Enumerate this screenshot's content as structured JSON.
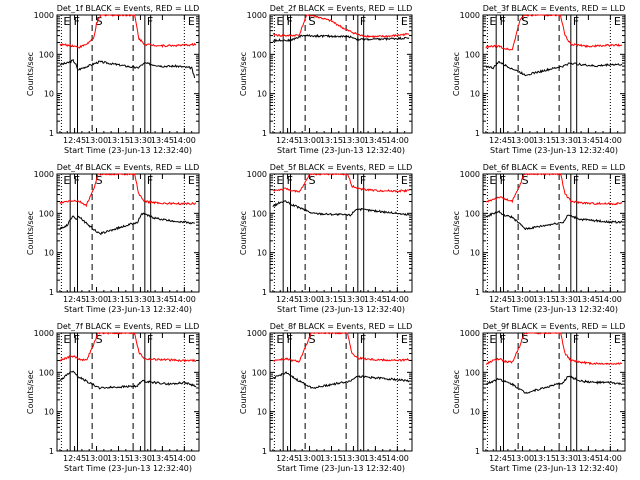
{
  "chart_data": [
    {
      "type": "line",
      "title": "Det_1f BLACK = Events, RED = LLD",
      "xlabel": "Start Time (23-Jun-13 12:32:40)",
      "ylabel": "Counts/sec",
      "x_tick_labels": [
        "12:45",
        "13:00",
        "13:15",
        "13:30",
        "13:45",
        "14:00"
      ],
      "y_tick_labels": [
        "1",
        "10",
        "100",
        "1000"
      ],
      "ylim": [
        1,
        1000
      ],
      "yscale": "log",
      "marker_labels": [
        "E",
        "F",
        "S",
        "F",
        "E"
      ],
      "series": [
        {
          "color": "#000000",
          "x": [
            "12:35",
            "12:40",
            "12:44",
            "12:46",
            "12:47",
            "13:02",
            "13:28",
            "13:33",
            "13:38",
            "13:45",
            "13:55",
            "14:05",
            "14:07"
          ],
          "values": [
            55,
            60,
            70,
            55,
            40,
            65,
            45,
            60,
            55,
            50,
            50,
            45,
            25
          ]
        },
        {
          "color": "#ff0000",
          "x": [
            "12:35",
            "12:40",
            "12:44",
            "12:48",
            "12:53",
            "12:58",
            "13:00",
            "13:03",
            "13:26",
            "13:29",
            "13:33",
            "13:45",
            "14:00",
            "14:08"
          ],
          "values": [
            180,
            170,
            165,
            150,
            180,
            250,
            600,
            1000,
            1000,
            250,
            180,
            165,
            170,
            180
          ]
        }
      ]
    },
    {
      "type": "line",
      "title": "Det_2f BLACK = Events, RED = LLD",
      "xlabel": "Start Time (23-Jun-13 12:32:40)",
      "ylabel": "Counts/sec",
      "x_tick_labels": [
        "12:45",
        "13:00",
        "13:15",
        "13:30",
        "13:45",
        "14:00"
      ],
      "y_tick_labels": [
        "1",
        "10",
        "100",
        "1000"
      ],
      "ylim": [
        1,
        1000
      ],
      "yscale": "log",
      "marker_labels": [
        "E",
        "F",
        "S",
        "F",
        "E"
      ],
      "series": [
        {
          "color": "#000000",
          "x": [
            "12:35",
            "12:40",
            "12:47",
            "12:55",
            "13:28",
            "13:33",
            "13:45",
            "13:55",
            "14:08"
          ],
          "values": [
            220,
            230,
            225,
            300,
            280,
            240,
            240,
            250,
            260
          ]
        },
        {
          "color": "#ff0000",
          "x": [
            "12:35",
            "12:40",
            "12:47",
            "12:53",
            "12:58",
            "13:03",
            "13:15",
            "13:25",
            "13:35",
            "13:45",
            "13:55",
            "14:08"
          ],
          "values": [
            320,
            300,
            300,
            310,
            1000,
            950,
            700,
            420,
            300,
            280,
            290,
            330
          ]
        }
      ]
    },
    {
      "type": "line",
      "title": "Det_3f BLACK = Events, RED = LLD",
      "xlabel": "Start Time (23-Jun-13 12:32:40)",
      "ylabel": "Counts/sec",
      "x_tick_labels": [
        "12:45",
        "13:00",
        "13:15",
        "13:30",
        "13:45",
        "14:00"
      ],
      "y_tick_labels": [
        "1",
        "10",
        "100",
        "1000"
      ],
      "ylim": [
        1,
        1000
      ],
      "yscale": "log",
      "marker_labels": [
        "E",
        "F",
        "S",
        "F",
        "E"
      ],
      "series": [
        {
          "color": "#000000",
          "x": [
            "12:35",
            "12:40",
            "12:44",
            "12:47",
            "13:02",
            "13:28",
            "13:32",
            "13:40",
            "13:50",
            "14:00",
            "14:08"
          ],
          "values": [
            50,
            45,
            65,
            55,
            30,
            50,
            60,
            55,
            50,
            55,
            55
          ]
        },
        {
          "color": "#ff0000",
          "x": [
            "12:35",
            "12:40",
            "12:44",
            "12:48",
            "12:53",
            "12:58",
            "13:01",
            "13:26",
            "13:29",
            "13:33",
            "13:45",
            "14:00",
            "14:08"
          ],
          "values": [
            150,
            160,
            160,
            140,
            130,
            700,
            1000,
            1000,
            300,
            180,
            160,
            170,
            170
          ]
        }
      ]
    },
    {
      "type": "line",
      "title": "Det_4f BLACK = Events, RED = LLD",
      "xlabel": "Start Time (23-Jun-13 12:32:40)",
      "ylabel": "Counts/sec",
      "x_tick_labels": [
        "12:45",
        "13:00",
        "13:15",
        "13:30",
        "13:45",
        "14:00"
      ],
      "y_tick_labels": [
        "1",
        "10",
        "100",
        "1000"
      ],
      "ylim": [
        1,
        1000
      ],
      "yscale": "log",
      "marker_labels": [
        "E",
        "F",
        "S",
        "F",
        "E"
      ],
      "series": [
        {
          "color": "#000000",
          "x": [
            "12:35",
            "12:40",
            "12:44",
            "12:46",
            "12:48",
            "12:52",
            "13:02",
            "13:28",
            "13:31",
            "13:40",
            "13:50",
            "14:00",
            "14:07"
          ],
          "values": [
            40,
            50,
            90,
            70,
            85,
            60,
            30,
            60,
            100,
            75,
            65,
            60,
            55
          ]
        },
        {
          "color": "#ff0000",
          "x": [
            "12:35",
            "12:40",
            "12:44",
            "12:48",
            "12:53",
            "12:58",
            "13:01",
            "13:26",
            "13:29",
            "13:33",
            "13:45",
            "14:00",
            "14:08"
          ],
          "values": [
            180,
            200,
            210,
            200,
            160,
            400,
            1000,
            1000,
            300,
            200,
            180,
            175,
            180
          ]
        }
      ]
    },
    {
      "type": "line",
      "title": "Det_5f BLACK = Events, RED = LLD",
      "xlabel": "Start Time (23-Jun-13 12:32:40)",
      "ylabel": "Counts/sec",
      "x_tick_labels": [
        "12:45",
        "13:00",
        "13:15",
        "13:30",
        "13:45",
        "14:00"
      ],
      "y_tick_labels": [
        "1",
        "10",
        "100",
        "1000"
      ],
      "ylim": [
        1,
        1000
      ],
      "yscale": "log",
      "marker_labels": [
        "E",
        "F",
        "S",
        "F",
        "E"
      ],
      "series": [
        {
          "color": "#000000",
          "x": [
            "12:35",
            "12:40",
            "12:44",
            "12:47",
            "12:53",
            "13:02",
            "13:28",
            "13:32",
            "13:40",
            "13:50",
            "14:00",
            "14:08"
          ],
          "values": [
            150,
            190,
            200,
            170,
            140,
            100,
            90,
            130,
            120,
            110,
            100,
            90
          ]
        },
        {
          "color": "#ff0000",
          "x": [
            "12:35",
            "12:40",
            "12:44",
            "12:48",
            "12:53",
            "12:58",
            "13:00",
            "13:26",
            "13:29",
            "13:33",
            "13:45",
            "14:00",
            "14:08"
          ],
          "values": [
            380,
            400,
            420,
            380,
            340,
            700,
            1000,
            1000,
            500,
            420,
            380,
            370,
            380
          ]
        }
      ]
    },
    {
      "type": "line",
      "title": "Det_6f BLACK = Events, RED = LLD",
      "xlabel": "Start Time (23-Jun-13 12:32:40)",
      "ylabel": "Counts/sec",
      "x_tick_labels": [
        "12:45",
        "13:00",
        "13:15",
        "13:30",
        "13:45",
        "14:00"
      ],
      "y_tick_labels": [
        "1",
        "10",
        "100",
        "1000"
      ],
      "ylim": [
        1,
        1000
      ],
      "yscale": "log",
      "marker_labels": [
        "E",
        "F",
        "S",
        "F",
        "E"
      ],
      "series": [
        {
          "color": "#000000",
          "x": [
            "12:35",
            "12:40",
            "12:44",
            "12:47",
            "12:53",
            "13:02",
            "13:28",
            "13:31",
            "13:40",
            "13:50",
            "14:00",
            "14:08"
          ],
          "values": [
            80,
            100,
            110,
            90,
            80,
            40,
            60,
            90,
            70,
            65,
            60,
            60
          ]
        },
        {
          "color": "#ff0000",
          "x": [
            "12:35",
            "12:40",
            "12:44",
            "12:48",
            "12:53",
            "12:58",
            "13:01",
            "13:26",
            "13:29",
            "13:33",
            "13:45",
            "14:00",
            "14:08"
          ],
          "values": [
            190,
            230,
            260,
            230,
            200,
            500,
            1000,
            1000,
            320,
            200,
            180,
            175,
            180
          ]
        }
      ]
    },
    {
      "type": "line",
      "title": "Det_7f BLACK = Events, RED = LLD",
      "xlabel": "Start Time (23-Jun-13 12:32:40)",
      "ylabel": "Counts/sec",
      "x_tick_labels": [
        "12:45",
        "13:00",
        "13:15",
        "13:30",
        "13:45",
        "14:00"
      ],
      "y_tick_labels": [
        "1",
        "10",
        "100",
        "1000"
      ],
      "ylim": [
        1,
        1000
      ],
      "yscale": "log",
      "marker_labels": [
        "E",
        "F",
        "S",
        "F",
        "E"
      ],
      "series": [
        {
          "color": "#000000",
          "x": [
            "12:35",
            "12:40",
            "12:44",
            "12:47",
            "12:53",
            "13:02",
            "13:28",
            "13:31",
            "13:40",
            "13:50",
            "14:00",
            "14:08"
          ],
          "values": [
            60,
            90,
            110,
            80,
            60,
            40,
            45,
            60,
            55,
            50,
            55,
            45
          ]
        },
        {
          "color": "#ff0000",
          "x": [
            "12:35",
            "12:40",
            "12:44",
            "12:48",
            "12:53",
            "12:58",
            "13:01",
            "13:26",
            "13:29",
            "13:33",
            "13:45",
            "14:00",
            "14:08"
          ],
          "values": [
            200,
            240,
            260,
            220,
            200,
            500,
            1000,
            1000,
            320,
            220,
            210,
            200,
            200
          ]
        }
      ]
    },
    {
      "type": "line",
      "title": "Det_8f BLACK = Events, RED = LLD",
      "xlabel": "Start Time (23-Jun-13 12:32:40)",
      "ylabel": "Counts/sec",
      "x_tick_labels": [
        "12:45",
        "13:00",
        "13:15",
        "13:30",
        "13:45",
        "14:00"
      ],
      "y_tick_labels": [
        "1",
        "10",
        "100",
        "1000"
      ],
      "ylim": [
        1,
        1000
      ],
      "yscale": "log",
      "marker_labels": [
        "E",
        "F",
        "S",
        "F",
        "E"
      ],
      "series": [
        {
          "color": "#000000",
          "x": [
            "12:35",
            "12:40",
            "12:44",
            "12:47",
            "12:53",
            "13:02",
            "13:28",
            "13:32",
            "13:40",
            "13:50",
            "14:00",
            "14:08"
          ],
          "values": [
            70,
            85,
            100,
            80,
            60,
            40,
            60,
            80,
            75,
            70,
            65,
            60
          ]
        },
        {
          "color": "#ff0000",
          "x": [
            "12:35",
            "12:40",
            "12:44",
            "12:48",
            "12:53",
            "12:58",
            "13:01",
            "13:26",
            "13:29",
            "13:33",
            "13:45",
            "14:00",
            "14:08"
          ],
          "values": [
            200,
            210,
            220,
            200,
            190,
            500,
            1000,
            1000,
            300,
            230,
            210,
            200,
            210
          ]
        }
      ]
    },
    {
      "type": "line",
      "title": "Det_9f BLACK = Events, RED = LLD",
      "xlabel": "Start Time (23-Jun-13 12:32:40)",
      "ylabel": "Counts/sec",
      "x_tick_labels": [
        "12:45",
        "13:00",
        "13:15",
        "13:30",
        "13:45",
        "14:00"
      ],
      "y_tick_labels": [
        "1",
        "10",
        "100",
        "1000"
      ],
      "ylim": [
        1,
        1000
      ],
      "yscale": "log",
      "marker_labels": [
        "E",
        "F",
        "S",
        "F",
        "E"
      ],
      "series": [
        {
          "color": "#000000",
          "x": [
            "12:35",
            "12:40",
            "12:44",
            "12:47",
            "12:53",
            "13:02",
            "13:28",
            "13:31",
            "13:40",
            "13:50",
            "14:00",
            "14:08"
          ],
          "values": [
            50,
            60,
            70,
            60,
            50,
            30,
            55,
            80,
            60,
            55,
            55,
            50
          ]
        },
        {
          "color": "#ff0000",
          "x": [
            "12:35",
            "12:40",
            "12:44",
            "12:48",
            "12:53",
            "12:58",
            "13:01",
            "13:26",
            "13:29",
            "13:33",
            "13:45",
            "14:00",
            "14:08"
          ],
          "values": [
            160,
            200,
            220,
            190,
            180,
            450,
            1000,
            1000,
            300,
            200,
            170,
            165,
            170
          ]
        }
      ]
    }
  ]
}
